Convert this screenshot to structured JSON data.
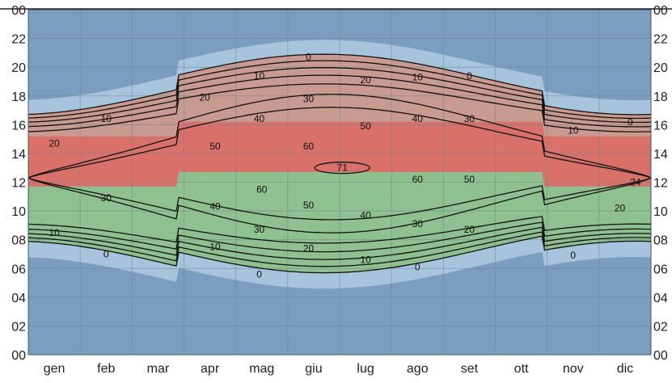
{
  "chart_data": {
    "type": "heatmap",
    "title": "",
    "xlabel": "",
    "ylabel": "",
    "months": [
      "gen",
      "feb",
      "mar",
      "apr",
      "mag",
      "giu",
      "lug",
      "ago",
      "set",
      "ott",
      "nov",
      "dic"
    ],
    "hour_ticks": [
      "00",
      "02",
      "04",
      "06",
      "08",
      "10",
      "12",
      "14",
      "16",
      "18",
      "20",
      "22",
      "00"
    ],
    "y_range_hours": [
      0,
      24
    ],
    "grid": true,
    "colors": {
      "night": "#7b9dbf",
      "twilight": "#a7c4dc",
      "morning": "#8fc08f",
      "midday": "#d9706a",
      "afternoon": "#c99a8f",
      "contour": "#111111",
      "grid": "#6f8190"
    },
    "day_length_annotation": "24",
    "contour_labels": [
      {
        "value": "71",
        "month_pos": 6.05,
        "hour": 13.0
      },
      {
        "value": "60",
        "month_pos": 5.4,
        "hour": 14.5
      },
      {
        "value": "60",
        "month_pos": 4.5,
        "hour": 11.5
      },
      {
        "value": "60",
        "month_pos": 7.5,
        "hour": 12.2
      },
      {
        "value": "50",
        "month_pos": 3.6,
        "hour": 14.5
      },
      {
        "value": "50",
        "month_pos": 6.5,
        "hour": 15.9
      },
      {
        "value": "50",
        "month_pos": 5.4,
        "hour": 10.4
      },
      {
        "value": "50",
        "month_pos": 8.5,
        "hour": 12.2
      },
      {
        "value": "40",
        "month_pos": 4.45,
        "hour": 16.4
      },
      {
        "value": "40",
        "month_pos": 7.5,
        "hour": 16.4
      },
      {
        "value": "40",
        "month_pos": 3.6,
        "hour": 10.3
      },
      {
        "value": "40",
        "month_pos": 6.5,
        "hour": 9.7
      },
      {
        "value": "30",
        "month_pos": 5.4,
        "hour": 17.8
      },
      {
        "value": "30",
        "month_pos": 8.5,
        "hour": 16.4
      },
      {
        "value": "30",
        "month_pos": 1.5,
        "hour": 10.9
      },
      {
        "value": "30",
        "month_pos": 4.45,
        "hour": 8.7
      },
      {
        "value": "30",
        "month_pos": 7.5,
        "hour": 9.1
      },
      {
        "value": "20",
        "month_pos": 3.4,
        "hour": 17.9
      },
      {
        "value": "20",
        "month_pos": 6.5,
        "hour": 19.1
      },
      {
        "value": "20",
        "month_pos": 0.5,
        "hour": 14.7
      },
      {
        "value": "20",
        "month_pos": 5.4,
        "hour": 7.4
      },
      {
        "value": "20",
        "month_pos": 8.5,
        "hour": 8.7
      },
      {
        "value": "20",
        "month_pos": 11.4,
        "hour": 10.2
      },
      {
        "value": "10",
        "month_pos": 4.45,
        "hour": 19.4
      },
      {
        "value": "10",
        "month_pos": 7.5,
        "hour": 19.3
      },
      {
        "value": "10",
        "month_pos": 1.5,
        "hour": 16.4
      },
      {
        "value": "10",
        "month_pos": 10.5,
        "hour": 15.6
      },
      {
        "value": "10",
        "month_pos": 0.5,
        "hour": 8.5
      },
      {
        "value": "10",
        "month_pos": 3.6,
        "hour": 7.5
      },
      {
        "value": "10",
        "month_pos": 6.5,
        "hour": 6.6
      },
      {
        "value": "0",
        "month_pos": 5.4,
        "hour": 20.7
      },
      {
        "value": "0",
        "month_pos": 8.5,
        "hour": 19.4
      },
      {
        "value": "0",
        "month_pos": 11.6,
        "hour": 16.2
      },
      {
        "value": "0",
        "month_pos": 1.5,
        "hour": 7.0
      },
      {
        "value": "0",
        "month_pos": 4.45,
        "hour": 5.6
      },
      {
        "value": "0",
        "month_pos": 7.5,
        "hour": 6.1
      },
      {
        "value": "0",
        "month_pos": 10.5,
        "hour": 6.9
      }
    ]
  }
}
